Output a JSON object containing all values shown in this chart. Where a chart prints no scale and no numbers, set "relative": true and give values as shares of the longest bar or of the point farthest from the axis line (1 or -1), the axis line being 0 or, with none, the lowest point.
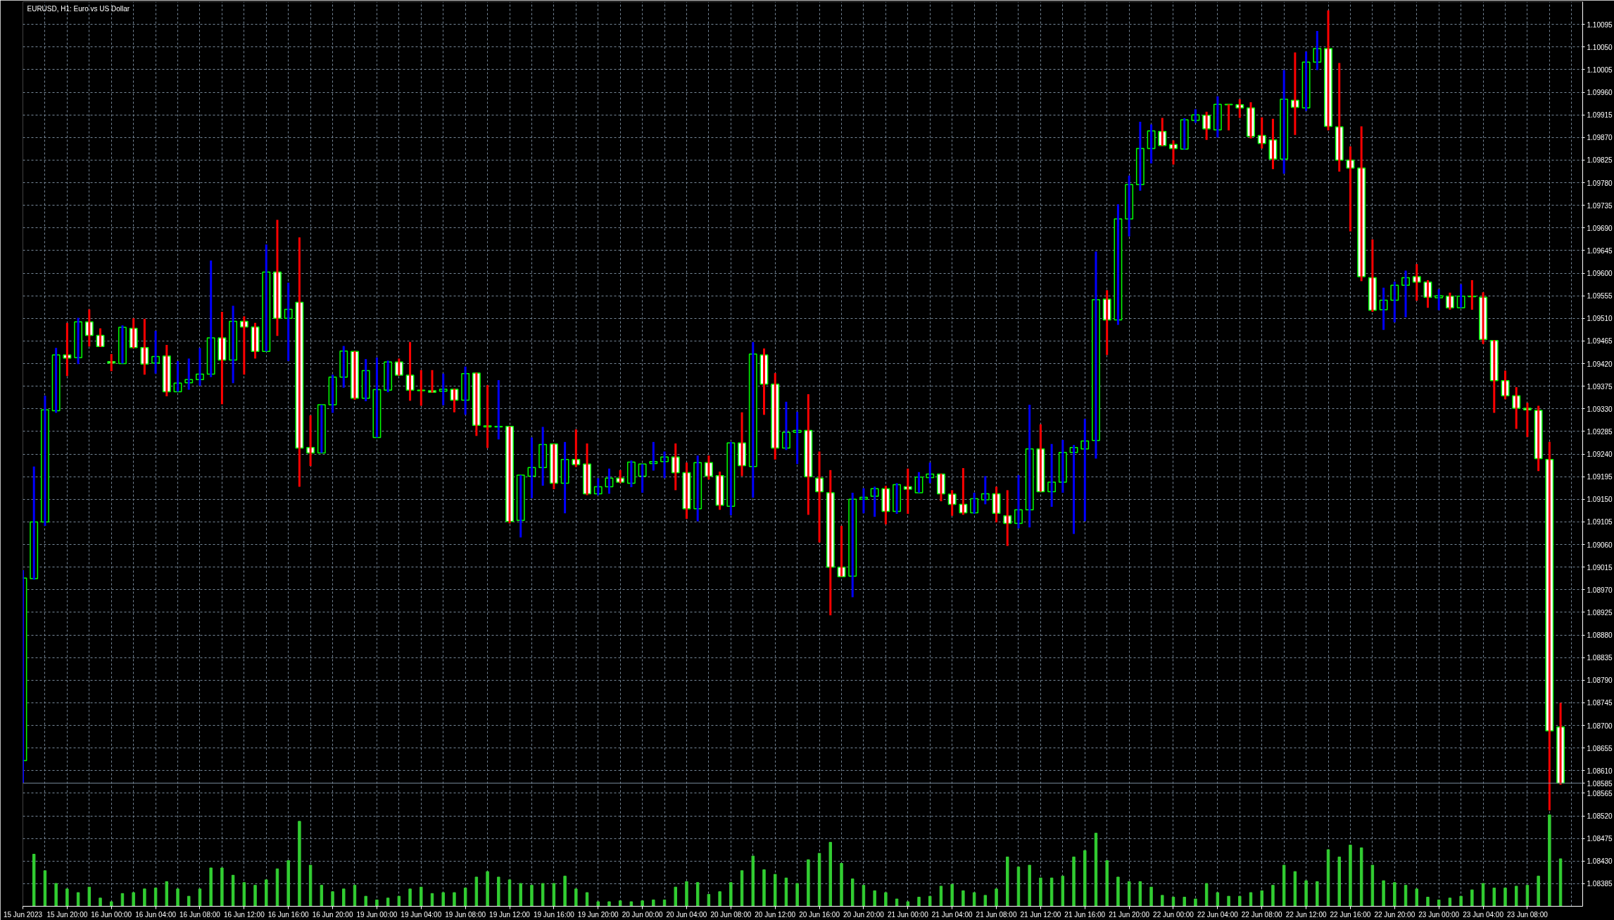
{
  "chart_data": [
    {
      "type": "candlestick",
      "title": "EURUSD, H1: Euro vs US Dollar",
      "tick_labels": "y",
      "categories": [
        null,
        null,
        null,
        null,
        null,
        null,
        null,
        null,
        null,
        null,
        null,
        null,
        null,
        null,
        null,
        null,
        null,
        null,
        null,
        null,
        null,
        null,
        null,
        null,
        null,
        null,
        null,
        null,
        null,
        null,
        null,
        null,
        null,
        null,
        null,
        null,
        null,
        null,
        null,
        null,
        null,
        null,
        null,
        null,
        null,
        null,
        null,
        null,
        null,
        null,
        null,
        null,
        null,
        null,
        null,
        null,
        null,
        null,
        null,
        null,
        null,
        null,
        null,
        null,
        null,
        null,
        null,
        null,
        null,
        null,
        null,
        null,
        null,
        null,
        null,
        null,
        null,
        null,
        null,
        null,
        null,
        null,
        null,
        null,
        null,
        null,
        null,
        null,
        null,
        null,
        null,
        null,
        null,
        null,
        null,
        null,
        null,
        null,
        null,
        null,
        null,
        null,
        null,
        null,
        null,
        null,
        null,
        null,
        null,
        null,
        null,
        null,
        null,
        null,
        null,
        null,
        null,
        null,
        null,
        null,
        null,
        null,
        null,
        null,
        null,
        null,
        null,
        null,
        null,
        null,
        null,
        null,
        null,
        null,
        null,
        null,
        null,
        null,
        null,
        null
      ],
      "ohlc": [
        [
          1.0863,
          1.09009,
          1.08585,
          1.08993
        ],
        [
          1.08992,
          1.09215,
          1.0899,
          1.09105
        ],
        [
          1.09105,
          1.09356,
          1.09097,
          1.09328
        ],
        [
          1.09326,
          1.09451,
          1.09322,
          1.09437
        ],
        [
          1.09437,
          1.09501,
          1.09395,
          1.09431
        ],
        [
          1.09432,
          1.09511,
          1.09419,
          1.09503
        ],
        [
          1.09503,
          1.09528,
          1.09454,
          1.09476
        ],
        [
          1.09476,
          1.0949,
          1.09453,
          1.09454
        ],
        [
          1.09424,
          1.09439,
          1.09405,
          1.09421
        ],
        [
          1.0942,
          1.09496,
          1.0942,
          1.09492
        ],
        [
          1.0949,
          1.0951,
          1.0945,
          1.09452
        ],
        [
          1.09452,
          1.09509,
          1.09398,
          1.09419
        ],
        [
          1.09421,
          1.09485,
          1.094,
          1.09434
        ],
        [
          1.09435,
          1.09457,
          1.09355,
          1.09364
        ],
        [
          1.09364,
          1.09425,
          1.09364,
          1.09381
        ],
        [
          1.09382,
          1.0943,
          1.09368,
          1.09388
        ],
        [
          1.09388,
          1.09451,
          1.09376,
          1.09399
        ],
        [
          1.09399,
          1.09625,
          1.09393,
          1.09471
        ],
        [
          1.09471,
          1.09523,
          1.09339,
          1.09427
        ],
        [
          1.09427,
          1.09535,
          1.09381,
          1.09504
        ],
        [
          1.09504,
          1.09514,
          1.09398,
          1.09493
        ],
        [
          1.09493,
          1.09501,
          1.0943,
          1.09444
        ],
        [
          1.09444,
          1.09657,
          1.09444,
          1.09602
        ],
        [
          1.09602,
          1.09706,
          1.09475,
          1.0951
        ],
        [
          1.0951,
          1.09581,
          1.09425,
          1.09528
        ],
        [
          1.09542,
          1.09671,
          1.09175,
          1.09252
        ],
        [
          1.09253,
          1.09317,
          1.09216,
          1.09242
        ],
        [
          1.09242,
          1.09338,
          1.09242,
          1.09338
        ],
        [
          1.09338,
          1.09398,
          1.09322,
          1.09393
        ],
        [
          1.09393,
          1.09455,
          1.09372,
          1.09445
        ],
        [
          1.09444,
          1.09445,
          1.09348,
          1.09351
        ],
        [
          1.09351,
          1.09429,
          1.09345,
          1.09406
        ],
        [
          1.09273,
          1.09432,
          1.09273,
          1.09368
        ],
        [
          1.09367,
          1.09426,
          1.09363,
          1.09423
        ],
        [
          1.09423,
          1.0943,
          1.09396,
          1.09397
        ],
        [
          1.09397,
          1.09463,
          1.09346,
          1.09367
        ],
        [
          1.09367,
          1.09407,
          1.09336,
          1.09366
        ],
        [
          1.09366,
          1.09407,
          1.09362,
          1.09363
        ],
        [
          1.09365,
          1.094,
          1.09337,
          1.09369
        ],
        [
          1.09369,
          1.0937,
          1.09323,
          1.09347
        ],
        [
          1.09347,
          1.09414,
          1.09318,
          1.094
        ],
        [
          1.09401,
          1.09402,
          1.09276,
          1.09297
        ],
        [
          1.09296,
          1.09377,
          1.09252,
          1.09294
        ],
        [
          1.09294,
          1.09387,
          1.09269,
          1.09295
        ],
        [
          1.09295,
          1.09295,
          1.09102,
          1.09106
        ],
        [
          1.09108,
          1.09198,
          1.09074,
          1.09198
        ],
        [
          1.09196,
          1.09273,
          1.09152,
          1.09213
        ],
        [
          1.09213,
          1.09294,
          1.09177,
          1.09259
        ],
        [
          1.0926,
          1.0926,
          1.0917,
          1.09182
        ],
        [
          1.09182,
          1.09264,
          1.09122,
          1.09229
        ],
        [
          1.09229,
          1.09289,
          1.09214,
          1.09219
        ],
        [
          1.0922,
          1.09261,
          1.09158,
          1.09161
        ],
        [
          1.09161,
          1.09192,
          1.09158,
          1.09175
        ],
        [
          1.09175,
          1.09211,
          1.09161,
          1.09192
        ],
        [
          1.09192,
          1.09208,
          1.09182,
          1.09184
        ],
        [
          1.09182,
          1.09227,
          1.09174,
          1.09224
        ],
        [
          1.09196,
          1.0922,
          1.09163,
          1.0922
        ],
        [
          1.09221,
          1.09264,
          1.09207,
          1.09225
        ],
        [
          1.09225,
          1.09245,
          1.09192,
          1.09234
        ],
        [
          1.09234,
          1.09261,
          1.09168,
          1.09203
        ],
        [
          1.09203,
          1.09223,
          1.09111,
          1.09131
        ],
        [
          1.09131,
          1.09237,
          1.09106,
          1.09223
        ],
        [
          1.09223,
          1.09237,
          1.09189,
          1.09196
        ],
        [
          1.09197,
          1.09205,
          1.09129,
          1.09138
        ],
        [
          1.09136,
          1.09264,
          1.09118,
          1.09262
        ],
        [
          1.09262,
          1.09323,
          1.09196,
          1.09217
        ],
        [
          1.09215,
          1.09463,
          1.09153,
          1.09439
        ],
        [
          1.09437,
          1.0945,
          1.09318,
          1.09379
        ],
        [
          1.09379,
          1.09401,
          1.09229,
          1.09252
        ],
        [
          1.09252,
          1.09344,
          1.09248,
          1.09283
        ],
        [
          1.09283,
          1.09324,
          1.0922,
          1.09287
        ],
        [
          1.09287,
          1.09359,
          1.09119,
          1.09195
        ],
        [
          1.09192,
          1.09245,
          1.09064,
          1.09165
        ],
        [
          1.09163,
          1.09208,
          1.08919,
          1.09015
        ],
        [
          1.09015,
          1.09097,
          1.08996,
          1.08996
        ],
        [
          1.08997,
          1.09163,
          1.08955,
          1.0915
        ],
        [
          1.0915,
          1.09172,
          1.09122,
          1.09154
        ],
        [
          1.09156,
          1.09175,
          1.09115,
          1.09171
        ],
        [
          1.09171,
          1.09177,
          1.091,
          1.09126
        ],
        [
          1.09126,
          1.09182,
          1.09121,
          1.09179
        ],
        [
          1.09175,
          1.09211,
          1.09121,
          1.0917
        ],
        [
          1.09163,
          1.09204,
          1.09163,
          1.09194
        ],
        [
          1.09193,
          1.09223,
          1.09182,
          1.092
        ],
        [
          1.092,
          1.09201,
          1.09146,
          1.09161
        ],
        [
          1.0916,
          1.09168,
          1.09117,
          1.0914
        ],
        [
          1.0914,
          1.09212,
          1.09119,
          1.09123
        ],
        [
          1.09123,
          1.09163,
          1.09121,
          1.09151
        ],
        [
          1.09149,
          1.09196,
          1.0914,
          1.09161
        ],
        [
          1.09161,
          1.09175,
          1.09104,
          1.09122
        ],
        [
          1.09117,
          1.09168,
          1.09057,
          1.09102
        ],
        [
          1.09102,
          1.09198,
          1.09092,
          1.09129
        ],
        [
          1.09129,
          1.09338,
          1.09094,
          1.0925
        ],
        [
          1.0925,
          1.09299,
          1.09165,
          1.09165
        ],
        [
          1.09165,
          1.0926,
          1.09135,
          1.09184
        ],
        [
          1.09184,
          1.09268,
          1.09163,
          1.09243
        ],
        [
          1.09243,
          1.09258,
          1.09081,
          1.09253
        ],
        [
          1.0925,
          1.0931,
          1.09106,
          1.09266
        ],
        [
          1.09267,
          1.09643,
          1.09231,
          1.09547
        ],
        [
          1.09548,
          1.09566,
          1.09437,
          1.09507
        ],
        [
          1.09507,
          1.09737,
          1.09497,
          1.09708
        ],
        [
          1.09708,
          1.09794,
          1.09673,
          1.09776
        ],
        [
          1.09776,
          1.09901,
          1.09764,
          1.09848
        ],
        [
          1.09848,
          1.09896,
          1.09818,
          1.09883
        ],
        [
          1.09882,
          1.09909,
          1.09853,
          1.09854
        ],
        [
          1.09856,
          1.09864,
          1.09816,
          1.09848
        ],
        [
          1.09847,
          1.09908,
          1.09846,
          1.09905
        ],
        [
          1.09904,
          1.09926,
          1.09899,
          1.09915
        ],
        [
          1.09914,
          1.09921,
          1.09865,
          1.09887
        ],
        [
          1.09885,
          1.09952,
          1.0987,
          1.09936
        ],
        [
          1.09936,
          1.09936,
          1.09884,
          1.09935
        ],
        [
          1.09935,
          1.09946,
          1.09909,
          1.09929
        ],
        [
          1.09929,
          1.0994,
          1.09868,
          1.09872
        ],
        [
          1.09874,
          1.0991,
          1.09848,
          1.09858
        ],
        [
          1.09865,
          1.09907,
          1.09807,
          1.09827
        ],
        [
          1.09827,
          1.10004,
          1.09798,
          1.09946
        ],
        [
          1.09944,
          1.10039,
          1.09875,
          1.0993
        ],
        [
          1.09929,
          1.10041,
          1.09923,
          1.1002
        ],
        [
          1.1002,
          1.10082,
          1.10004,
          1.10047
        ],
        [
          1.10047,
          1.10123,
          1.09884,
          1.09892
        ],
        [
          1.09891,
          1.10018,
          1.09802,
          1.09825
        ],
        [
          1.09825,
          1.09852,
          1.09683,
          1.09809
        ],
        [
          1.09809,
          1.09892,
          1.09584,
          1.09593
        ],
        [
          1.09591,
          1.09667,
          1.09523,
          1.09526
        ],
        [
          1.09527,
          1.09571,
          1.09487,
          1.09546
        ],
        [
          1.09546,
          1.09583,
          1.09502,
          1.09576
        ],
        [
          1.09576,
          1.09605,
          1.09512,
          1.09591
        ],
        [
          1.09593,
          1.09618,
          1.09545,
          1.09582
        ],
        [
          1.09582,
          1.09586,
          1.09531,
          1.09552
        ],
        [
          1.09551,
          1.09568,
          1.09526,
          1.09555
        ],
        [
          1.09554,
          1.09561,
          1.09527,
          1.09531
        ],
        [
          1.09531,
          1.09578,
          1.09531,
          1.09554
        ],
        [
          1.09554,
          1.09586,
          1.09527,
          1.09553
        ],
        [
          1.09552,
          1.09562,
          1.09459,
          1.09468
        ],
        [
          1.09466,
          1.09467,
          1.09322,
          1.09386
        ],
        [
          1.09386,
          1.09406,
          1.09349,
          1.09356
        ],
        [
          1.09356,
          1.09373,
          1.0929,
          1.09331
        ],
        [
          1.09331,
          1.09342,
          1.09274,
          1.09328
        ],
        [
          1.09327,
          1.09336,
          1.09206,
          1.09231
        ],
        [
          1.09229,
          1.09264,
          1.08531,
          1.08689
        ],
        [
          1.08697,
          1.08745,
          1.08582,
          1.08585
        ]
      ],
      "ylim": [
        1.0834,
        1.1014
      ],
      "yticks": [
        1.08385,
        {
          "value": 1.0843,
          "label": "1.08430"
        },
        1.08475,
        {
          "value": 1.0852,
          "label": "1.08520"
        },
        1.08565,
        {
          "value": 1.0861,
          "label": "1.08610"
        },
        1.08655,
        {
          "value": 1.087,
          "label": "1.08700"
        },
        1.08745,
        {
          "value": 1.0879,
          "label": "1.08790"
        },
        1.08835,
        {
          "value": 1.0888,
          "label": "1.08880"
        },
        1.08925,
        {
          "value": 1.0897,
          "label": "1.08970"
        },
        1.09015,
        {
          "value": 1.0906,
          "label": "1.09060"
        },
        1.09105,
        {
          "value": 1.0915,
          "label": "1.09150"
        },
        1.09195,
        {
          "value": 1.0924,
          "label": "1.09240"
        },
        1.09285,
        {
          "value": 1.0933,
          "label": "1.09330"
        },
        1.09375,
        {
          "value": 1.0942,
          "label": "1.09420"
        },
        1.09465,
        {
          "value": 1.0951,
          "label": "1.09510"
        },
        1.09555,
        {
          "value": 1.096,
          "label": "1.09600"
        },
        1.09645,
        {
          "value": 1.0969,
          "label": "1.09690"
        },
        1.09735,
        {
          "value": 1.0978,
          "label": "1.09780"
        },
        1.09825,
        {
          "value": 1.0987,
          "label": "1.09870"
        },
        1.09915,
        {
          "value": 1.0996,
          "label": "1.09960"
        },
        1.10005,
        {
          "value": 1.1005,
          "label": "1.10050"
        },
        1.10095
      ],
      "grid": true,
      "ref_lines": [
        {
          "axis": "y",
          "value": 1.08585,
          "label": "1.08585",
          "color": "#778899"
        }
      ]
    },
    {
      "type": "bar",
      "relative": true,
      "color": "#32cd32",
      "categories": [
        "15 Jun 2023",
        null,
        null,
        null,
        "15 Jun 20:00",
        null,
        null,
        null,
        "16 Jun 00:00",
        null,
        null,
        null,
        "16 Jun 04:00",
        null,
        null,
        null,
        "16 Jun 08:00",
        null,
        null,
        null,
        "16 Jun 12:00",
        null,
        null,
        null,
        "16 Jun 16:00",
        null,
        null,
        null,
        "16 Jun 20:00",
        null,
        null,
        null,
        "19 Jun 00:00",
        null,
        null,
        null,
        "19 Jun 04:00",
        null,
        null,
        null,
        "19 Jun 08:00",
        null,
        null,
        null,
        "19 Jun 12:00",
        null,
        null,
        null,
        "19 Jun 16:00",
        null,
        null,
        null,
        "19 Jun 20:00",
        null,
        null,
        null,
        "20 Jun 00:00",
        null,
        null,
        null,
        "20 Jun 04:00",
        null,
        null,
        null,
        "20 Jun 08:00",
        null,
        null,
        null,
        "20 Jun 12:00",
        null,
        null,
        null,
        "20 Jun 16:00",
        null,
        null,
        null,
        "20 Jun 20:00",
        null,
        null,
        null,
        "21 Jun 00:00",
        null,
        null,
        null,
        "21 Jun 04:00",
        null,
        null,
        null,
        "21 Jun 08:00",
        null,
        null,
        null,
        "21 Jun 12:00",
        null,
        null,
        null,
        "21 Jun 16:00",
        null,
        null,
        null,
        "21 Jun 20:00",
        null,
        null,
        null,
        "22 Jun 00:00",
        null,
        null,
        null,
        "22 Jun 04:00",
        null,
        null,
        null,
        "22 Jun 08:00",
        null,
        null,
        null,
        "22 Jun 12:00",
        null,
        null,
        null,
        "22 Jun 16:00",
        null,
        null,
        null,
        "22 Jun 20:00",
        null,
        null,
        null,
        "23 Jun 00:00",
        null,
        null,
        null,
        "23 Jun 04:00",
        null,
        null,
        null,
        "23 Jun 08:00",
        null,
        null,
        null
      ],
      "values": [
        null,
        0.57,
        0.39,
        0.25,
        0.19,
        0.15,
        0.21,
        0.09,
        0.05,
        0.14,
        0.15,
        0.19,
        0.2,
        0.27,
        0.19,
        0.11,
        0.19,
        0.42,
        0.42,
        0.34,
        0.26,
        0.23,
        0.29,
        0.41,
        0.5,
        0.93,
        0.45,
        0.23,
        0.16,
        0.19,
        0.23,
        0.11,
        0.07,
        0.09,
        0.11,
        0.19,
        0.21,
        0.14,
        0.15,
        0.15,
        0.2,
        0.32,
        0.38,
        0.32,
        0.29,
        0.25,
        0.23,
        0.25,
        0.25,
        0.33,
        0.19,
        0.15,
        0.05,
        0.05,
        0.06,
        0.05,
        0.06,
        0.07,
        0.07,
        0.21,
        0.27,
        0.26,
        0.13,
        0.16,
        0.26,
        0.39,
        0.55,
        0.4,
        0.35,
        0.31,
        0.25,
        0.51,
        0.58,
        0.7,
        0.47,
        0.3,
        0.23,
        0.17,
        0.15,
        0.08,
        0.05,
        0.1,
        0.11,
        0.22,
        0.24,
        0.17,
        0.15,
        0.12,
        0.19,
        0.54,
        0.43,
        0.45,
        0.31,
        0.31,
        0.33,
        0.54,
        0.61,
        0.8,
        0.5,
        0.32,
        0.27,
        0.27,
        0.21,
        0.12,
        0.1,
        0.1,
        0.08,
        0.25,
        0.15,
        0.11,
        0.11,
        0.15,
        0.17,
        0.23,
        0.45,
        0.38,
        0.28,
        0.27,
        0.62,
        0.54,
        0.67,
        0.64,
        0.45,
        0.28,
        0.26,
        0.23,
        0.19,
        0.1,
        0.07,
        0.09,
        0.11,
        0.18,
        0.25,
        0.2,
        0.2,
        0.22,
        0.23,
        0.33,
        1,
        0.52
      ]
    }
  ]
}
